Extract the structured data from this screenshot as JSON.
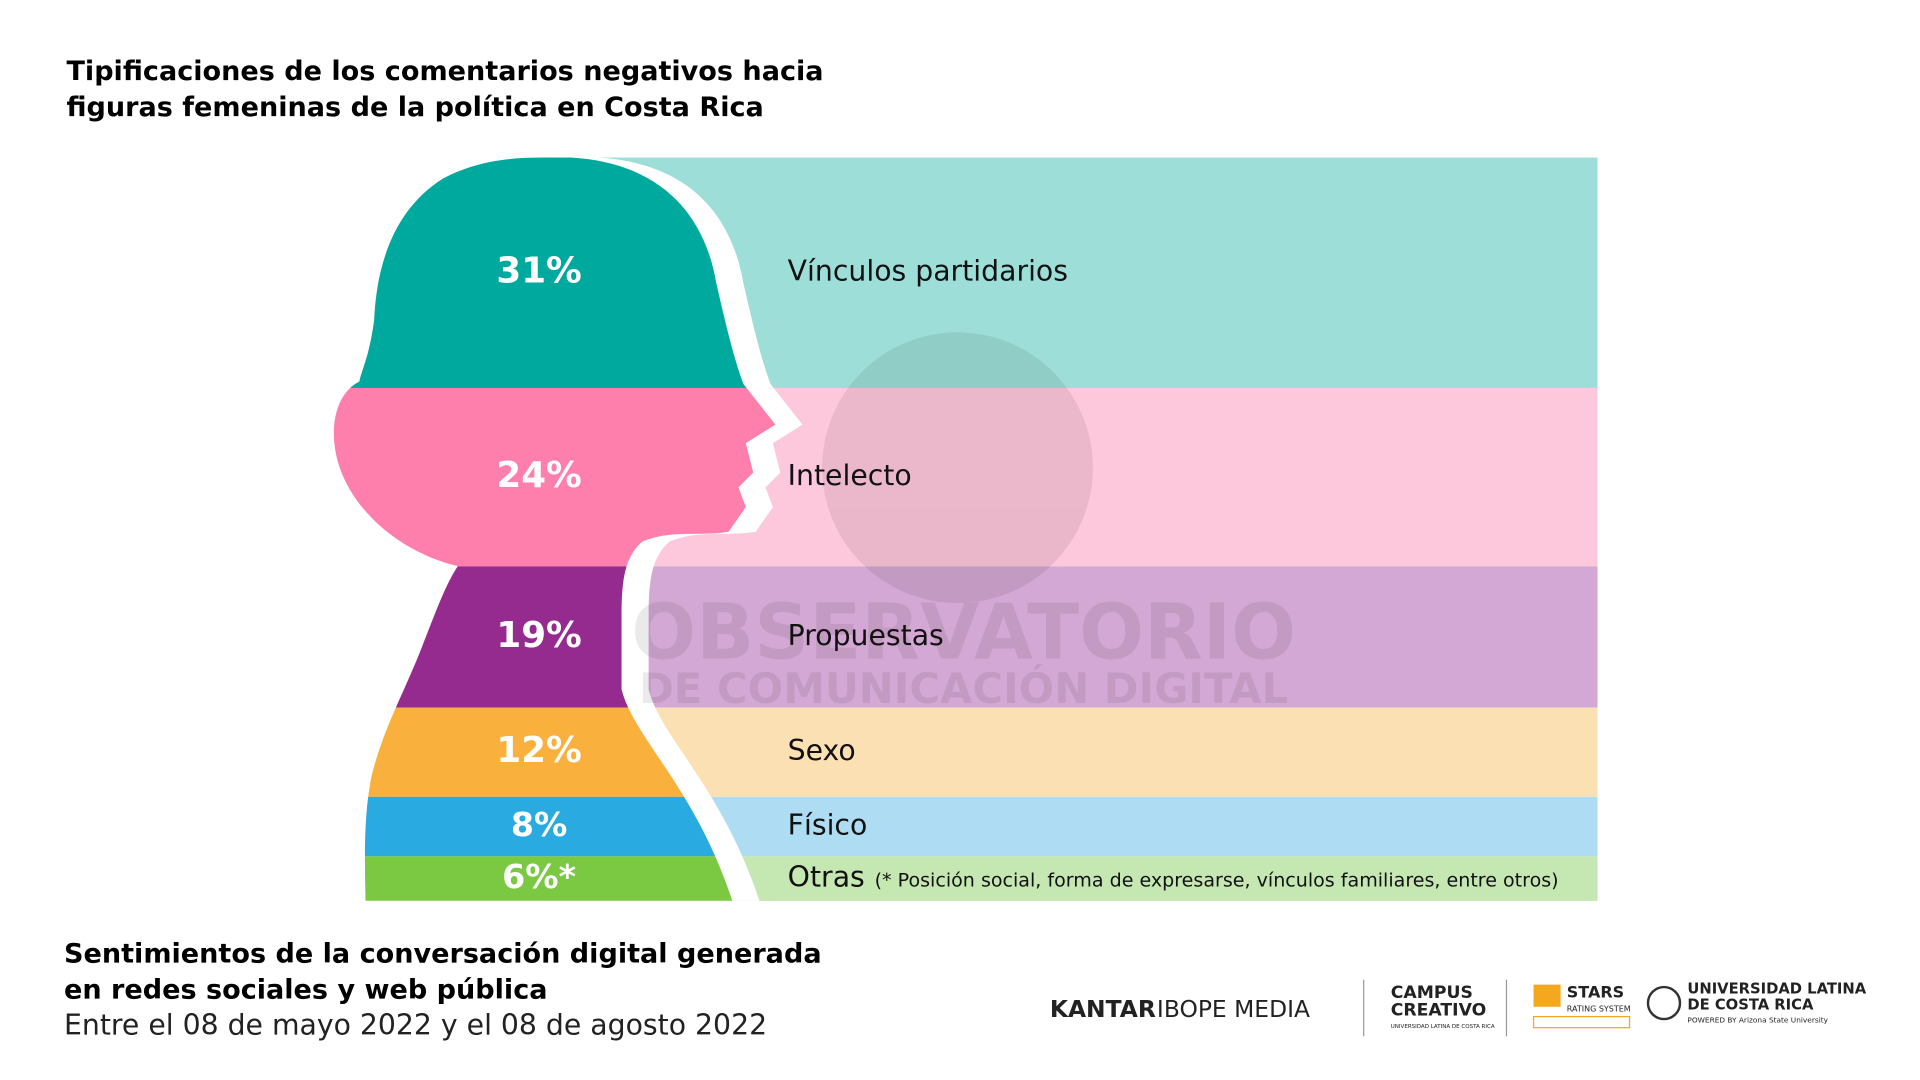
{
  "chart_data": {
    "type": "stacked",
    "title": [
      "Tipificaciones de los comentarios negativos hacia",
      "figuras femeninas de la política en Costa Rica"
    ],
    "categories": [
      "Vínculos partidarios",
      "Intelecto",
      "Propuestas",
      "Sexo",
      "Físico",
      "Otras"
    ],
    "values": [
      31,
      24,
      19,
      12,
      8,
      6
    ],
    "value_labels": [
      "31%",
      "24%",
      "19%",
      "12%",
      "8%",
      "6%*"
    ],
    "colors": [
      "#00a99d",
      "#fe7fac",
      "#952a8f",
      "#f9b03d",
      "#29abe2",
      "#7bc943"
    ],
    "light_colors": [
      "#9ddfd8",
      "#fec8dc",
      "#d4a8d4",
      "#fbe0b4",
      "#aedcf2",
      "#c5e7b2"
    ],
    "note": "(* Posición social, forma de expresarse, vínculos familiares, entre otros)",
    "watermark": [
      "OBSERVATORIO",
      "DE COMUNICACIÓN DIGITAL"
    ],
    "subtitle": [
      "Sentimientos de la conversación digital generada",
      "en redes sociales y web pública"
    ],
    "date_range": "Entre el 08 de mayo 2022 y el 08 de agosto 2022"
  },
  "logos": {
    "kantar": [
      "KANTAR",
      "IBOPE MEDIA"
    ],
    "campus": [
      "CAMPUS",
      "CREATIVO",
      "UNIVERSIDAD LATINA DE COSTA RICA"
    ],
    "stars": [
      "STARS",
      "RATING SYSTEM"
    ],
    "ulatina": [
      "UNIVERSIDAD LATINA",
      "DE COSTA RICA",
      "POWERED BY Arizona State University"
    ]
  }
}
